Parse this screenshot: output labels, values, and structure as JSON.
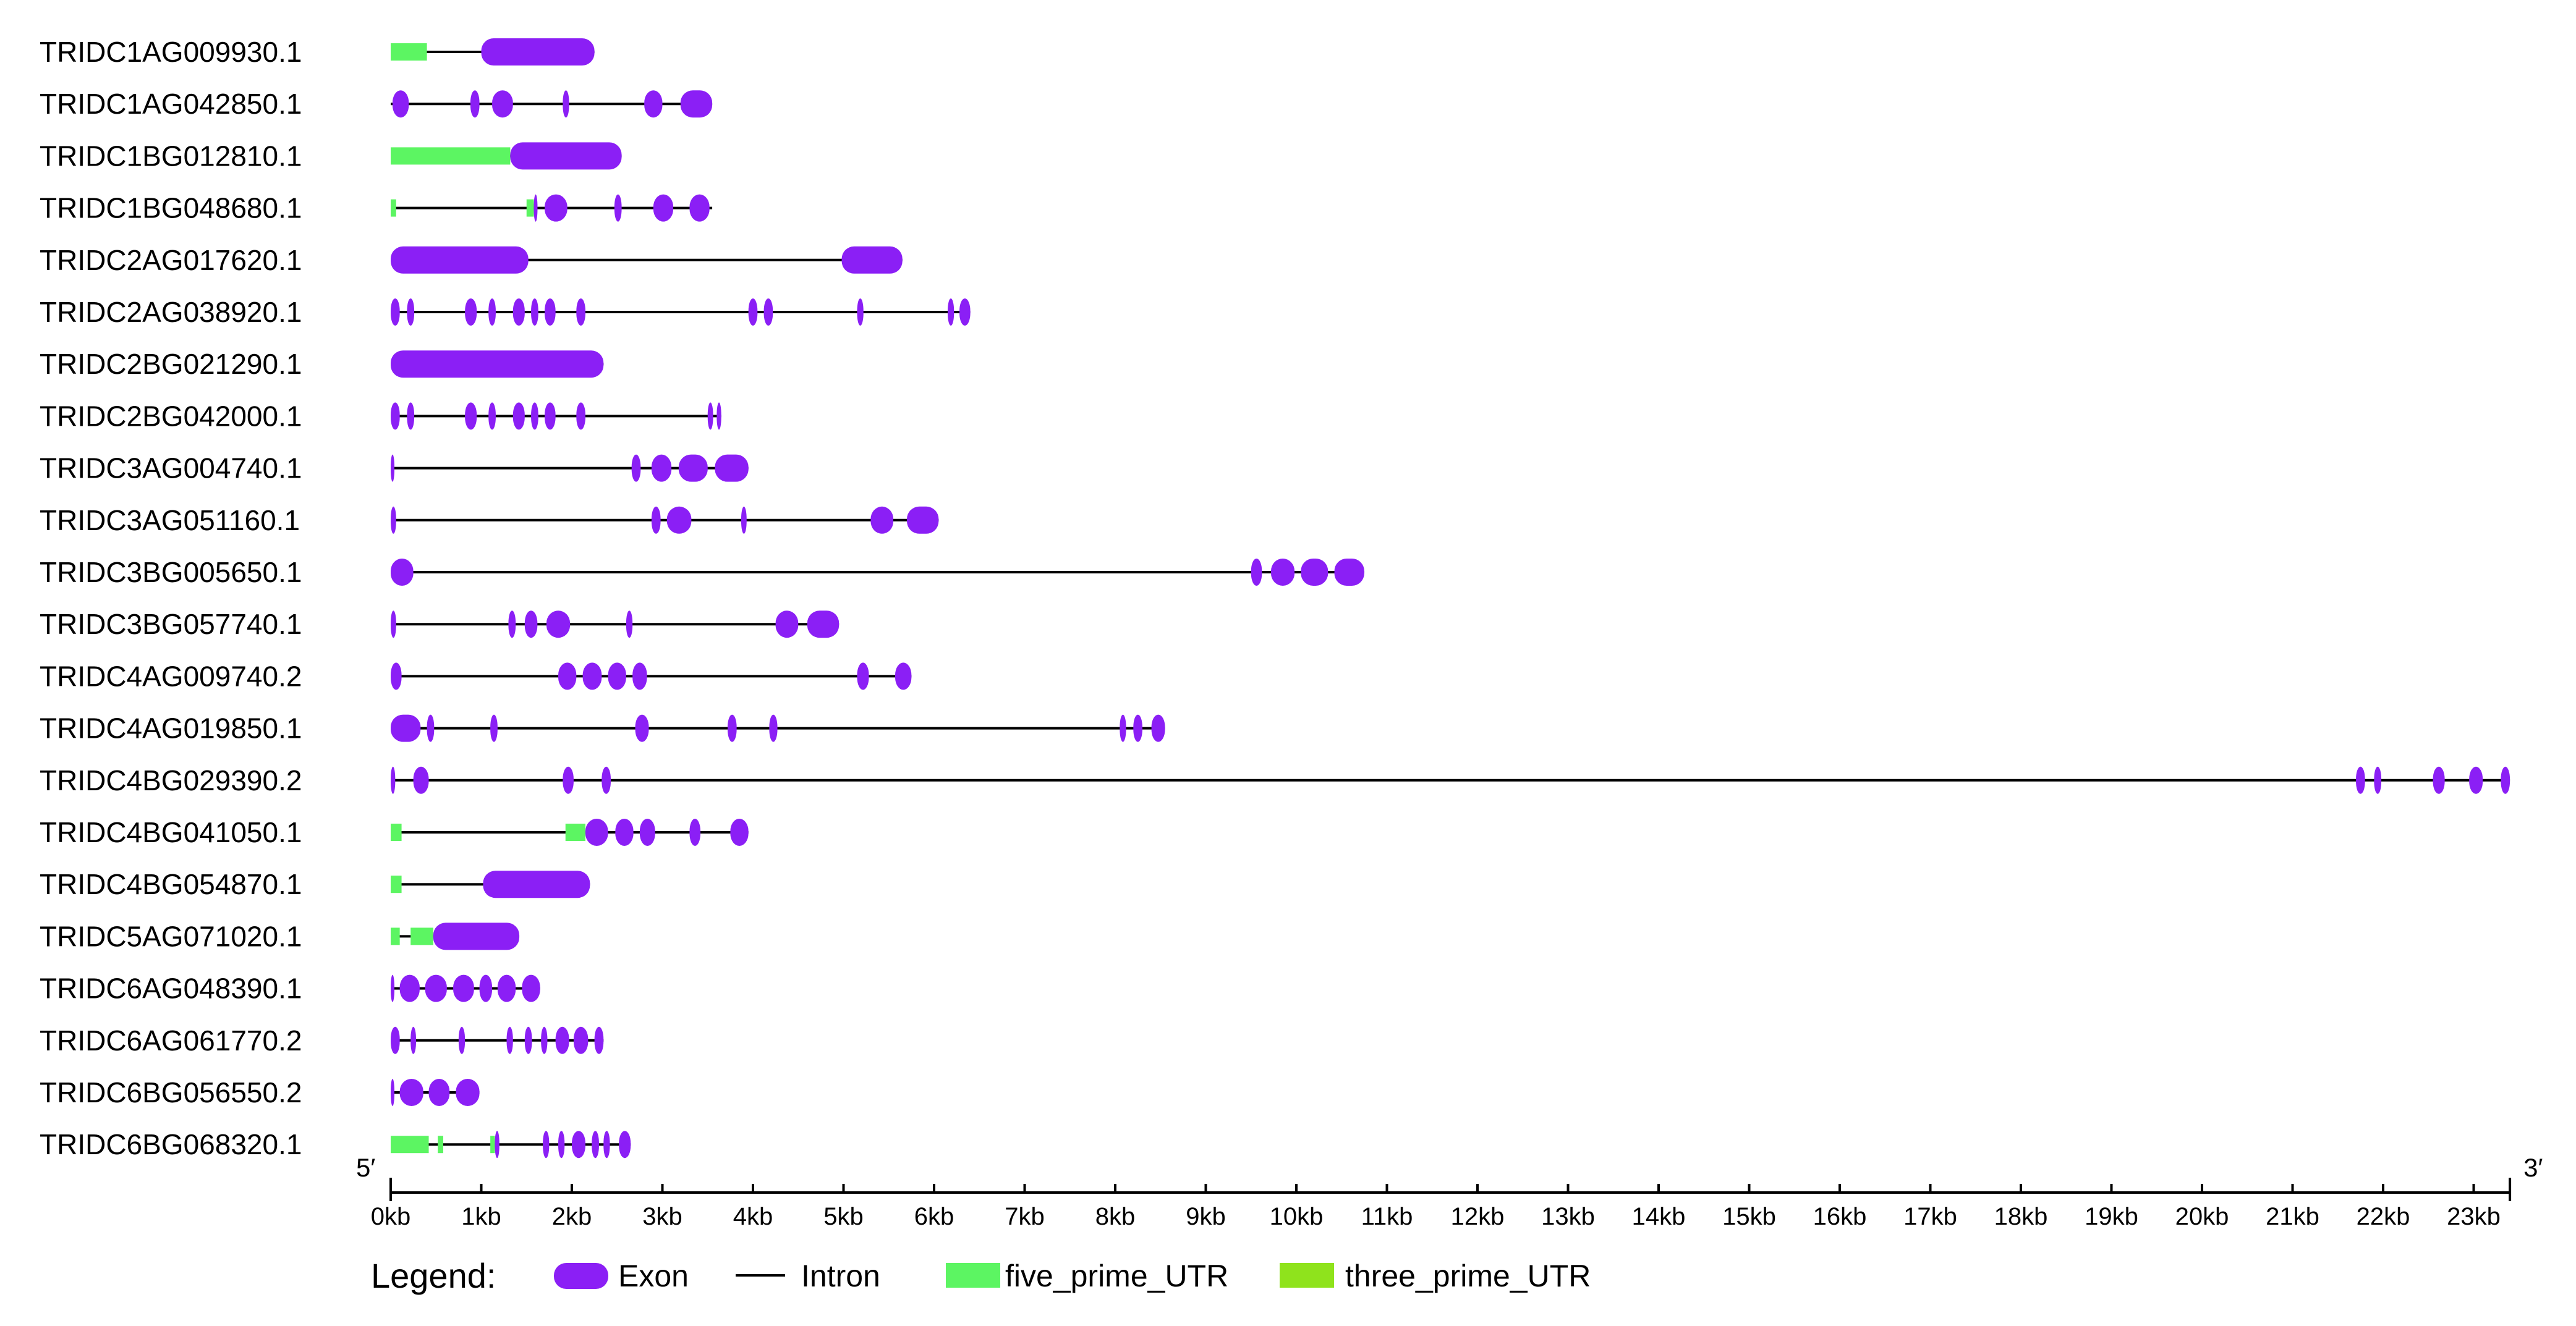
{
  "chart_data": {
    "type": "gene-structure",
    "title": "",
    "axis": {
      "unit": "kb",
      "min": 0,
      "max": 23.4,
      "ticks": [
        "0kb",
        "1kb",
        "2kb",
        "3kb",
        "4kb",
        "5kb",
        "6kb",
        "7kb",
        "8kb",
        "9kb",
        "10kb",
        "11kb",
        "12kb",
        "13kb",
        "14kb",
        "15kb",
        "16kb",
        "17kb",
        "18kb",
        "19kb",
        "20kb",
        "21kb",
        "22kb",
        "23kb"
      ],
      "start_label": "5′",
      "end_label": "3′"
    },
    "colors": {
      "exon": "#8b1ff5",
      "intron": "#000000",
      "five_prime_UTR": "#5cf562",
      "three_prime_UTR": "#8fe31c"
    },
    "legend": {
      "title": "Legend:",
      "items": [
        {
          "type": "exon",
          "label": "Exon"
        },
        {
          "type": "intron",
          "label": "Intron"
        },
        {
          "type": "five_prime_UTR",
          "label": "five_prime_UTR"
        },
        {
          "type": "three_prime_UTR",
          "label": "three_prime_UTR"
        }
      ]
    },
    "genes": [
      {
        "name": "TRIDC1AG009930.1",
        "length": 2.25,
        "features": [
          {
            "type": "utr5",
            "start": 0,
            "end": 0.4
          },
          {
            "type": "exon",
            "start": 1.0,
            "end": 2.25
          }
        ]
      },
      {
        "name": "TRIDC1AG042850.1",
        "length": 3.55,
        "features": [
          {
            "type": "exon",
            "start": 0.02,
            "end": 0.2
          },
          {
            "type": "exon",
            "start": 0.88,
            "end": 0.98
          },
          {
            "type": "exon",
            "start": 1.12,
            "end": 1.35
          },
          {
            "type": "exon",
            "start": 1.9,
            "end": 1.97
          },
          {
            "type": "exon",
            "start": 2.8,
            "end": 3.0
          },
          {
            "type": "exon",
            "start": 3.2,
            "end": 3.55
          }
        ]
      },
      {
        "name": "TRIDC1BG012810.1",
        "length": 2.55,
        "features": [
          {
            "type": "utr5",
            "start": 0,
            "end": 1.32
          },
          {
            "type": "exon",
            "start": 1.32,
            "end": 2.55
          }
        ]
      },
      {
        "name": "TRIDC1BG048680.1",
        "length": 3.55,
        "features": [
          {
            "type": "utr5",
            "start": 0,
            "end": 0.06
          },
          {
            "type": "utr5",
            "start": 1.5,
            "end": 1.58
          },
          {
            "type": "exon",
            "start": 1.58,
            "end": 1.62
          },
          {
            "type": "exon",
            "start": 1.7,
            "end": 1.95
          },
          {
            "type": "exon",
            "start": 2.47,
            "end": 2.55
          },
          {
            "type": "exon",
            "start": 2.9,
            "end": 3.12
          },
          {
            "type": "exon",
            "start": 3.3,
            "end": 3.52
          }
        ]
      },
      {
        "name": "TRIDC2AG017620.1",
        "length": 5.65,
        "features": [
          {
            "type": "exon",
            "start": 0,
            "end": 1.52
          },
          {
            "type": "exon",
            "start": 4.98,
            "end": 5.65
          }
        ]
      },
      {
        "name": "TRIDC2AG038920.1",
        "length": 6.4,
        "features": [
          {
            "type": "exon",
            "start": 0,
            "end": 0.1
          },
          {
            "type": "exon",
            "start": 0.18,
            "end": 0.26
          },
          {
            "type": "exon",
            "start": 0.82,
            "end": 0.95
          },
          {
            "type": "exon",
            "start": 1.08,
            "end": 1.16
          },
          {
            "type": "exon",
            "start": 1.35,
            "end": 1.48
          },
          {
            "type": "exon",
            "start": 1.55,
            "end": 1.63
          },
          {
            "type": "exon",
            "start": 1.7,
            "end": 1.82
          },
          {
            "type": "exon",
            "start": 2.05,
            "end": 2.15
          },
          {
            "type": "exon",
            "start": 3.95,
            "end": 4.05
          },
          {
            "type": "exon",
            "start": 4.12,
            "end": 4.22
          },
          {
            "type": "exon",
            "start": 5.15,
            "end": 5.22
          },
          {
            "type": "exon",
            "start": 6.15,
            "end": 6.22
          },
          {
            "type": "exon",
            "start": 6.28,
            "end": 6.4
          }
        ]
      },
      {
        "name": "TRIDC2BG021290.1",
        "length": 2.35,
        "features": [
          {
            "type": "exon",
            "start": 0,
            "end": 2.35
          }
        ]
      },
      {
        "name": "TRIDC2BG042000.1",
        "length": 3.65,
        "features": [
          {
            "type": "exon",
            "start": 0,
            "end": 0.1
          },
          {
            "type": "exon",
            "start": 0.18,
            "end": 0.26
          },
          {
            "type": "exon",
            "start": 0.82,
            "end": 0.95
          },
          {
            "type": "exon",
            "start": 1.08,
            "end": 1.16
          },
          {
            "type": "exon",
            "start": 1.35,
            "end": 1.48
          },
          {
            "type": "exon",
            "start": 1.55,
            "end": 1.63
          },
          {
            "type": "exon",
            "start": 1.7,
            "end": 1.82
          },
          {
            "type": "exon",
            "start": 2.05,
            "end": 2.15
          },
          {
            "type": "exon",
            "start": 3.5,
            "end": 3.56
          },
          {
            "type": "exon",
            "start": 3.6,
            "end": 3.65
          }
        ]
      },
      {
        "name": "TRIDC3AG004740.1",
        "length": 3.95,
        "features": [
          {
            "type": "exon",
            "start": 0,
            "end": 0.04
          },
          {
            "type": "exon",
            "start": 2.66,
            "end": 2.76
          },
          {
            "type": "exon",
            "start": 2.88,
            "end": 3.1
          },
          {
            "type": "exon",
            "start": 3.18,
            "end": 3.5
          },
          {
            "type": "exon",
            "start": 3.58,
            "end": 3.95
          }
        ]
      },
      {
        "name": "TRIDC3AG051160.1",
        "length": 6.05,
        "features": [
          {
            "type": "exon",
            "start": 0,
            "end": 0.06
          },
          {
            "type": "exon",
            "start": 2.88,
            "end": 2.98
          },
          {
            "type": "exon",
            "start": 3.05,
            "end": 3.32
          },
          {
            "type": "exon",
            "start": 3.87,
            "end": 3.93
          },
          {
            "type": "exon",
            "start": 5.3,
            "end": 5.55
          },
          {
            "type": "exon",
            "start": 5.7,
            "end": 6.05
          }
        ]
      },
      {
        "name": "TRIDC3BG005650.1",
        "length": 10.75,
        "features": [
          {
            "type": "exon",
            "start": 0,
            "end": 0.25
          },
          {
            "type": "exon",
            "start": 9.5,
            "end": 9.62
          },
          {
            "type": "exon",
            "start": 9.72,
            "end": 9.98
          },
          {
            "type": "exon",
            "start": 10.05,
            "end": 10.35
          },
          {
            "type": "exon",
            "start": 10.42,
            "end": 10.75
          }
        ]
      },
      {
        "name": "TRIDC3BG057740.1",
        "length": 4.95,
        "features": [
          {
            "type": "exon",
            "start": 0,
            "end": 0.06
          },
          {
            "type": "exon",
            "start": 1.3,
            "end": 1.38
          },
          {
            "type": "exon",
            "start": 1.48,
            "end": 1.62
          },
          {
            "type": "exon",
            "start": 1.72,
            "end": 1.98
          },
          {
            "type": "exon",
            "start": 2.6,
            "end": 2.67
          },
          {
            "type": "exon",
            "start": 4.25,
            "end": 4.5
          },
          {
            "type": "exon",
            "start": 4.6,
            "end": 4.95
          }
        ]
      },
      {
        "name": "TRIDC4AG009740.2",
        "length": 5.75,
        "features": [
          {
            "type": "exon",
            "start": 0,
            "end": 0.12
          },
          {
            "type": "exon",
            "start": 1.85,
            "end": 2.05
          },
          {
            "type": "exon",
            "start": 2.12,
            "end": 2.33
          },
          {
            "type": "exon",
            "start": 2.4,
            "end": 2.6
          },
          {
            "type": "exon",
            "start": 2.67,
            "end": 2.83
          },
          {
            "type": "exon",
            "start": 5.15,
            "end": 5.28
          },
          {
            "type": "exon",
            "start": 5.57,
            "end": 5.75
          }
        ]
      },
      {
        "name": "TRIDC4AG019850.1",
        "length": 8.55,
        "features": [
          {
            "type": "exon",
            "start": 0,
            "end": 0.33
          },
          {
            "type": "exon",
            "start": 0.4,
            "end": 0.48
          },
          {
            "type": "exon",
            "start": 1.1,
            "end": 1.18
          },
          {
            "type": "exon",
            "start": 2.7,
            "end": 2.85
          },
          {
            "type": "exon",
            "start": 3.72,
            "end": 3.82
          },
          {
            "type": "exon",
            "start": 4.18,
            "end": 4.27
          },
          {
            "type": "exon",
            "start": 8.05,
            "end": 8.12
          },
          {
            "type": "exon",
            "start": 8.2,
            "end": 8.3
          },
          {
            "type": "exon",
            "start": 8.4,
            "end": 8.55
          }
        ]
      },
      {
        "name": "TRIDC4BG029390.2",
        "length": 23.4,
        "features": [
          {
            "type": "exon",
            "start": 0,
            "end": 0.05
          },
          {
            "type": "exon",
            "start": 0.25,
            "end": 0.42
          },
          {
            "type": "exon",
            "start": 1.9,
            "end": 2.02
          },
          {
            "type": "exon",
            "start": 2.33,
            "end": 2.43
          },
          {
            "type": "exon",
            "start": 21.7,
            "end": 21.8
          },
          {
            "type": "exon",
            "start": 21.9,
            "end": 21.98
          },
          {
            "type": "exon",
            "start": 22.55,
            "end": 22.68
          },
          {
            "type": "exon",
            "start": 22.95,
            "end": 23.1
          },
          {
            "type": "exon",
            "start": 23.3,
            "end": 23.4
          }
        ]
      },
      {
        "name": "TRIDC4BG041050.1",
        "length": 3.95,
        "features": [
          {
            "type": "utr5",
            "start": 0,
            "end": 0.12
          },
          {
            "type": "utr5",
            "start": 1.93,
            "end": 2.15
          },
          {
            "type": "exon",
            "start": 2.15,
            "end": 2.4
          },
          {
            "type": "exon",
            "start": 2.48,
            "end": 2.68
          },
          {
            "type": "exon",
            "start": 2.75,
            "end": 2.92
          },
          {
            "type": "exon",
            "start": 3.3,
            "end": 3.42
          },
          {
            "type": "exon",
            "start": 3.75,
            "end": 3.95
          }
        ]
      },
      {
        "name": "TRIDC4BG054870.1",
        "length": 2.2,
        "features": [
          {
            "type": "utr5",
            "start": 0,
            "end": 0.12
          },
          {
            "type": "exon",
            "start": 1.02,
            "end": 2.2
          }
        ]
      },
      {
        "name": "TRIDC5AG071020.1",
        "length": 1.42,
        "features": [
          {
            "type": "utr5",
            "start": 0,
            "end": 0.1
          },
          {
            "type": "utr5",
            "start": 0.22,
            "end": 0.47
          },
          {
            "type": "exon",
            "start": 0.47,
            "end": 1.42
          }
        ]
      },
      {
        "name": "TRIDC6AG048390.1",
        "length": 1.65,
        "features": [
          {
            "type": "exon",
            "start": 0,
            "end": 0.04
          },
          {
            "type": "exon",
            "start": 0.1,
            "end": 0.32
          },
          {
            "type": "exon",
            "start": 0.38,
            "end": 0.62
          },
          {
            "type": "exon",
            "start": 0.69,
            "end": 0.92
          },
          {
            "type": "exon",
            "start": 0.98,
            "end": 1.12
          },
          {
            "type": "exon",
            "start": 1.18,
            "end": 1.38
          },
          {
            "type": "exon",
            "start": 1.45,
            "end": 1.65
          }
        ]
      },
      {
        "name": "TRIDC6AG061770.2",
        "length": 2.35,
        "features": [
          {
            "type": "exon",
            "start": 0,
            "end": 0.1
          },
          {
            "type": "exon",
            "start": 0.22,
            "end": 0.28
          },
          {
            "type": "exon",
            "start": 0.75,
            "end": 0.82
          },
          {
            "type": "exon",
            "start": 1.28,
            "end": 1.35
          },
          {
            "type": "exon",
            "start": 1.48,
            "end": 1.56
          },
          {
            "type": "exon",
            "start": 1.66,
            "end": 1.73
          },
          {
            "type": "exon",
            "start": 1.82,
            "end": 1.97
          },
          {
            "type": "exon",
            "start": 2.02,
            "end": 2.18
          },
          {
            "type": "exon",
            "start": 2.25,
            "end": 2.35
          }
        ]
      },
      {
        "name": "TRIDC6BG056550.2",
        "length": 0.98,
        "features": [
          {
            "type": "exon",
            "start": 0,
            "end": 0.04
          },
          {
            "type": "exon",
            "start": 0.1,
            "end": 0.36
          },
          {
            "type": "exon",
            "start": 0.42,
            "end": 0.65
          },
          {
            "type": "exon",
            "start": 0.72,
            "end": 0.98
          }
        ]
      },
      {
        "name": "TRIDC6BG068320.1",
        "length": 2.65,
        "features": [
          {
            "type": "utr5",
            "start": 0,
            "end": 0.42
          },
          {
            "type": "utr5",
            "start": 0.52,
            "end": 0.58
          },
          {
            "type": "utr5",
            "start": 1.1,
            "end": 1.15
          },
          {
            "type": "exon",
            "start": 1.15,
            "end": 1.2
          },
          {
            "type": "exon",
            "start": 1.68,
            "end": 1.75
          },
          {
            "type": "exon",
            "start": 1.85,
            "end": 1.92
          },
          {
            "type": "exon",
            "start": 2.0,
            "end": 2.15
          },
          {
            "type": "exon",
            "start": 2.22,
            "end": 2.3
          },
          {
            "type": "exon",
            "start": 2.35,
            "end": 2.42
          },
          {
            "type": "exon",
            "start": 2.52,
            "end": 2.65
          }
        ]
      }
    ]
  }
}
